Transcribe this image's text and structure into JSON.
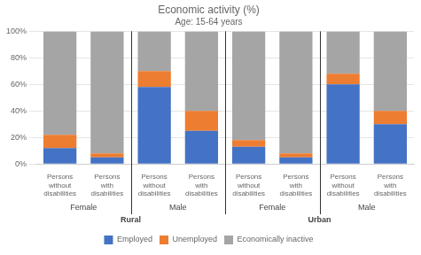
{
  "chart_data": {
    "type": "bar",
    "title": "Economic activity (%)",
    "subtitle": "Age: 15-64 years",
    "categories": [
      "Persons\nwithout\ndisabilities",
      "Persons\nwith\ndisabilities",
      "Persons\nwithout\ndisabilities",
      "Persons\nwith\ndisabilities",
      "Persons\nwithout\ndisabilities",
      "Persons\nwith\ndisabilities",
      "Persons\nwithout\ndisabilities",
      "Persons\nwith\ndisabilities"
    ],
    "series": [
      {
        "name": "Employed",
        "color": "#4472C4",
        "values": [
          12,
          5,
          58,
          25,
          13,
          5,
          60,
          30
        ]
      },
      {
        "name": "Unemployed",
        "color": "#ED7D31",
        "values": [
          10,
          3,
          12,
          15,
          5,
          3,
          8,
          10
        ]
      },
      {
        "name": "Economically inactive",
        "color": "#A5A5A5",
        "values": [
          78,
          92,
          30,
          60,
          82,
          92,
          32,
          60
        ]
      }
    ],
    "annotations": [
      "Female",
      "Male",
      "Female",
      "Male",
      "Rural",
      "Urban"
    ],
    "ylim": [
      0,
      100
    ],
    "yticks": [
      {
        "value": 0,
        "label": "0%"
      },
      {
        "value": 20,
        "label": "20%"
      },
      {
        "value": 40,
        "label": "40%"
      },
      {
        "value": 60,
        "label": "60%"
      },
      {
        "value": 80,
        "label": "80%"
      },
      {
        "value": 100,
        "label": "100%"
      }
    ],
    "stacked": true,
    "grid": true,
    "legend": "bottom"
  }
}
